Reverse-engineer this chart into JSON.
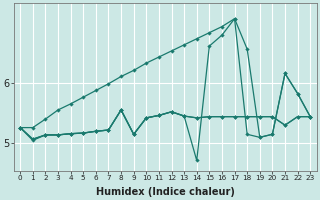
{
  "xlabel": "Humidex (Indice chaleur)",
  "ylabel": "",
  "bg_color": "#cce8e5",
  "line_color": "#1a7a6e",
  "grid_color": "#ffffff",
  "xlim": [
    -0.5,
    23.5
  ],
  "ylim": [
    4.55,
    7.3
  ],
  "yticks": [
    5,
    6
  ],
  "xticks": [
    0,
    1,
    2,
    3,
    4,
    5,
    6,
    7,
    8,
    9,
    10,
    11,
    12,
    13,
    14,
    15,
    16,
    17,
    18,
    19,
    20,
    21,
    22,
    23
  ],
  "series": [
    [
      5.26,
      5.07,
      5.14,
      5.14,
      5.16,
      5.17,
      5.2,
      5.22,
      5.55,
      5.15,
      5.42,
      5.46,
      5.52,
      5.45,
      5.42,
      5.44,
      5.44,
      5.44,
      5.44,
      5.44,
      5.44,
      5.3,
      5.44,
      5.44
    ],
    [
      5.26,
      5.07,
      5.14,
      5.14,
      5.16,
      5.17,
      5.2,
      5.22,
      5.55,
      5.15,
      5.42,
      5.46,
      5.52,
      5.45,
      5.42,
      5.44,
      5.44,
      5.44,
      5.44,
      5.44,
      5.44,
      5.3,
      5.44,
      5.44
    ],
    [
      5.26,
      5.05,
      5.14,
      5.14,
      5.16,
      5.17,
      5.2,
      5.22,
      5.55,
      5.15,
      5.42,
      5.46,
      5.52,
      5.45,
      4.72,
      6.6,
      6.78,
      7.05,
      5.15,
      5.1,
      5.15,
      6.15,
      5.82,
      5.44
    ],
    [
      5.26,
      5.26,
      5.4,
      5.55,
      5.65,
      5.76,
      5.87,
      5.98,
      6.1,
      6.2,
      6.32,
      6.42,
      6.52,
      6.62,
      6.72,
      6.82,
      6.92,
      7.05,
      6.55,
      5.1,
      5.15,
      6.15,
      5.82,
      5.44
    ]
  ]
}
